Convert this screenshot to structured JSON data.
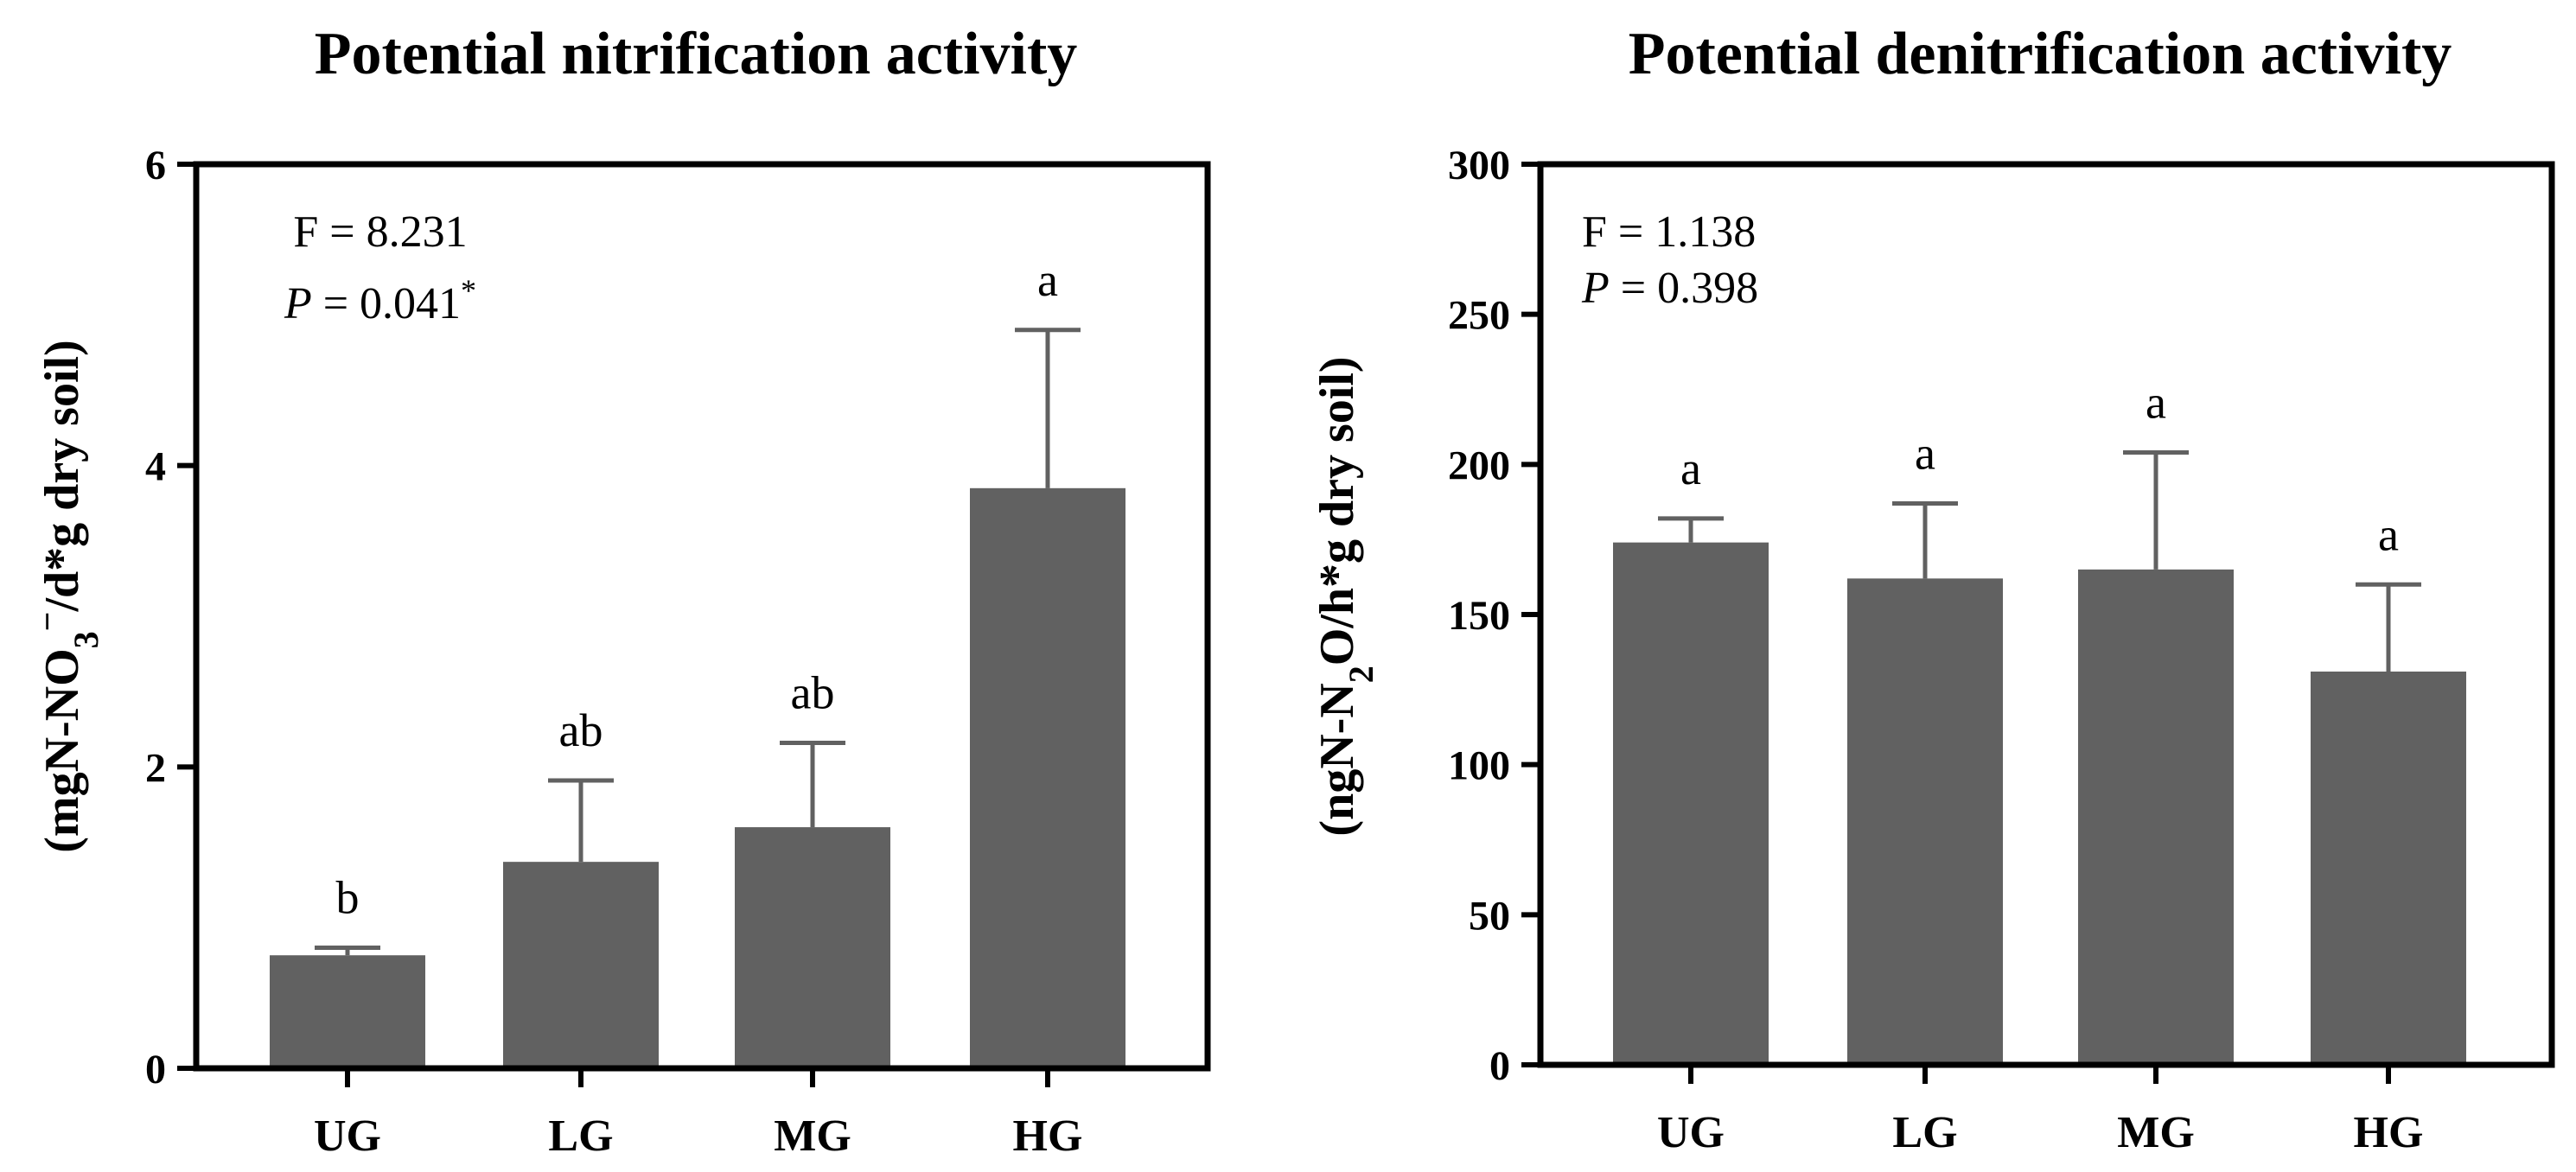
{
  "chart_data": [
    {
      "type": "bar",
      "title": "Potential nitrification activity",
      "xlabel": "",
      "ylabel_parts": [
        "(mgN-NO",
        "3",
        "−",
        "/d*g dry soil)"
      ],
      "categories": [
        "UG",
        "LG",
        "MG",
        "HG"
      ],
      "values": [
        0.75,
        1.37,
        1.6,
        3.85
      ],
      "errors": [
        0.05,
        0.54,
        0.56,
        1.05
      ],
      "letters": [
        "b",
        "ab",
        "ab",
        "a"
      ],
      "ylim": [
        0,
        6
      ],
      "yticks": [
        0,
        2,
        4,
        6
      ],
      "ytick_labels": [
        "0",
        "2",
        "4",
        "6"
      ],
      "stat_f": "F = 8.231",
      "stat_p_label": "P",
      "stat_p_value": " = 0.041",
      "stat_p_mark": "*"
    },
    {
      "type": "bar",
      "title": "Potential denitrification activity",
      "xlabel": "",
      "ylabel_parts": [
        "(ngN-N",
        "2",
        "O/h*g dry soil)"
      ],
      "categories": [
        "UG",
        "LG",
        "MG",
        "HG"
      ],
      "values": [
        174,
        162,
        165,
        131
      ],
      "errors": [
        8,
        25,
        39,
        29
      ],
      "letters": [
        "a",
        "a",
        "a",
        "a"
      ],
      "ylim": [
        0,
        300
      ],
      "yticks": [
        0,
        50,
        100,
        150,
        200,
        250,
        300
      ],
      "ytick_labels": [
        "0",
        "50",
        "100",
        "150",
        "200",
        "250",
        "300"
      ],
      "stat_f": "F = 1.138",
      "stat_p_label": "P",
      "stat_p_value": " = 0.398",
      "stat_p_mark": ""
    }
  ],
  "colors": {
    "bar": "#616161",
    "axis": "#000000"
  }
}
